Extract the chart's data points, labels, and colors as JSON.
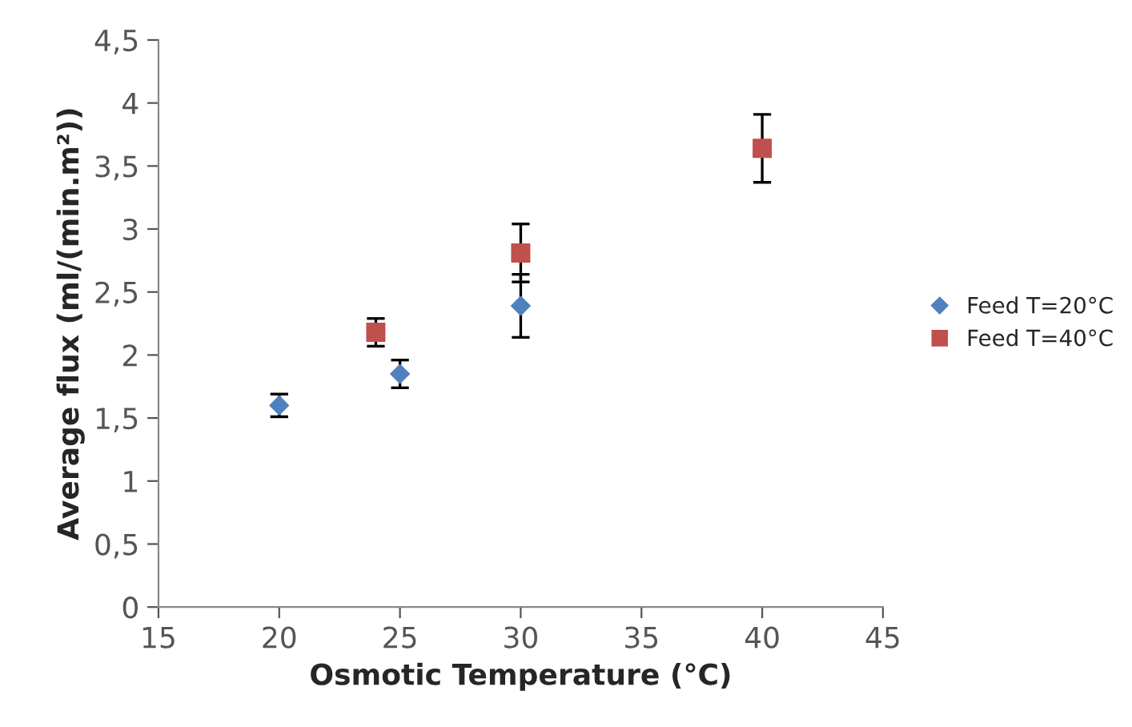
{
  "chart_data": {
    "type": "scatter",
    "xlabel": "Osmotic Temperature (°C)",
    "ylabel": "Average flux (ml/(min.m²))",
    "xlim": [
      15,
      45
    ],
    "xticks": [
      15,
      20,
      25,
      30,
      35,
      40,
      45
    ],
    "ylim": [
      0,
      4.5
    ],
    "yticks": [
      0,
      {
        "value": 0.5,
        "label": "0,5"
      },
      1,
      {
        "value": 1.5,
        "label": "1,5"
      },
      2,
      {
        "value": 2.5,
        "label": "2,5"
      },
      3,
      {
        "value": 3.5,
        "label": "3,5"
      },
      4,
      {
        "value": 4.5,
        "label": "4,5"
      }
    ],
    "grid": false,
    "legend": "right",
    "series": [
      {
        "name": "Feed T=20°C",
        "color": "#4f81bd",
        "marker": "diamond",
        "x": [
          20,
          25,
          30
        ],
        "values": [
          1.6,
          1.85,
          2.39
        ],
        "errors": [
          0.09,
          0.11,
          0.25
        ]
      },
      {
        "name": "Feed T=40°C",
        "color": "#c0504d",
        "marker": "square",
        "x": [
          24,
          30,
          40
        ],
        "values": [
          2.18,
          2.81,
          3.64
        ],
        "errors": [
          0.11,
          0.23,
          0.27
        ]
      }
    ]
  }
}
